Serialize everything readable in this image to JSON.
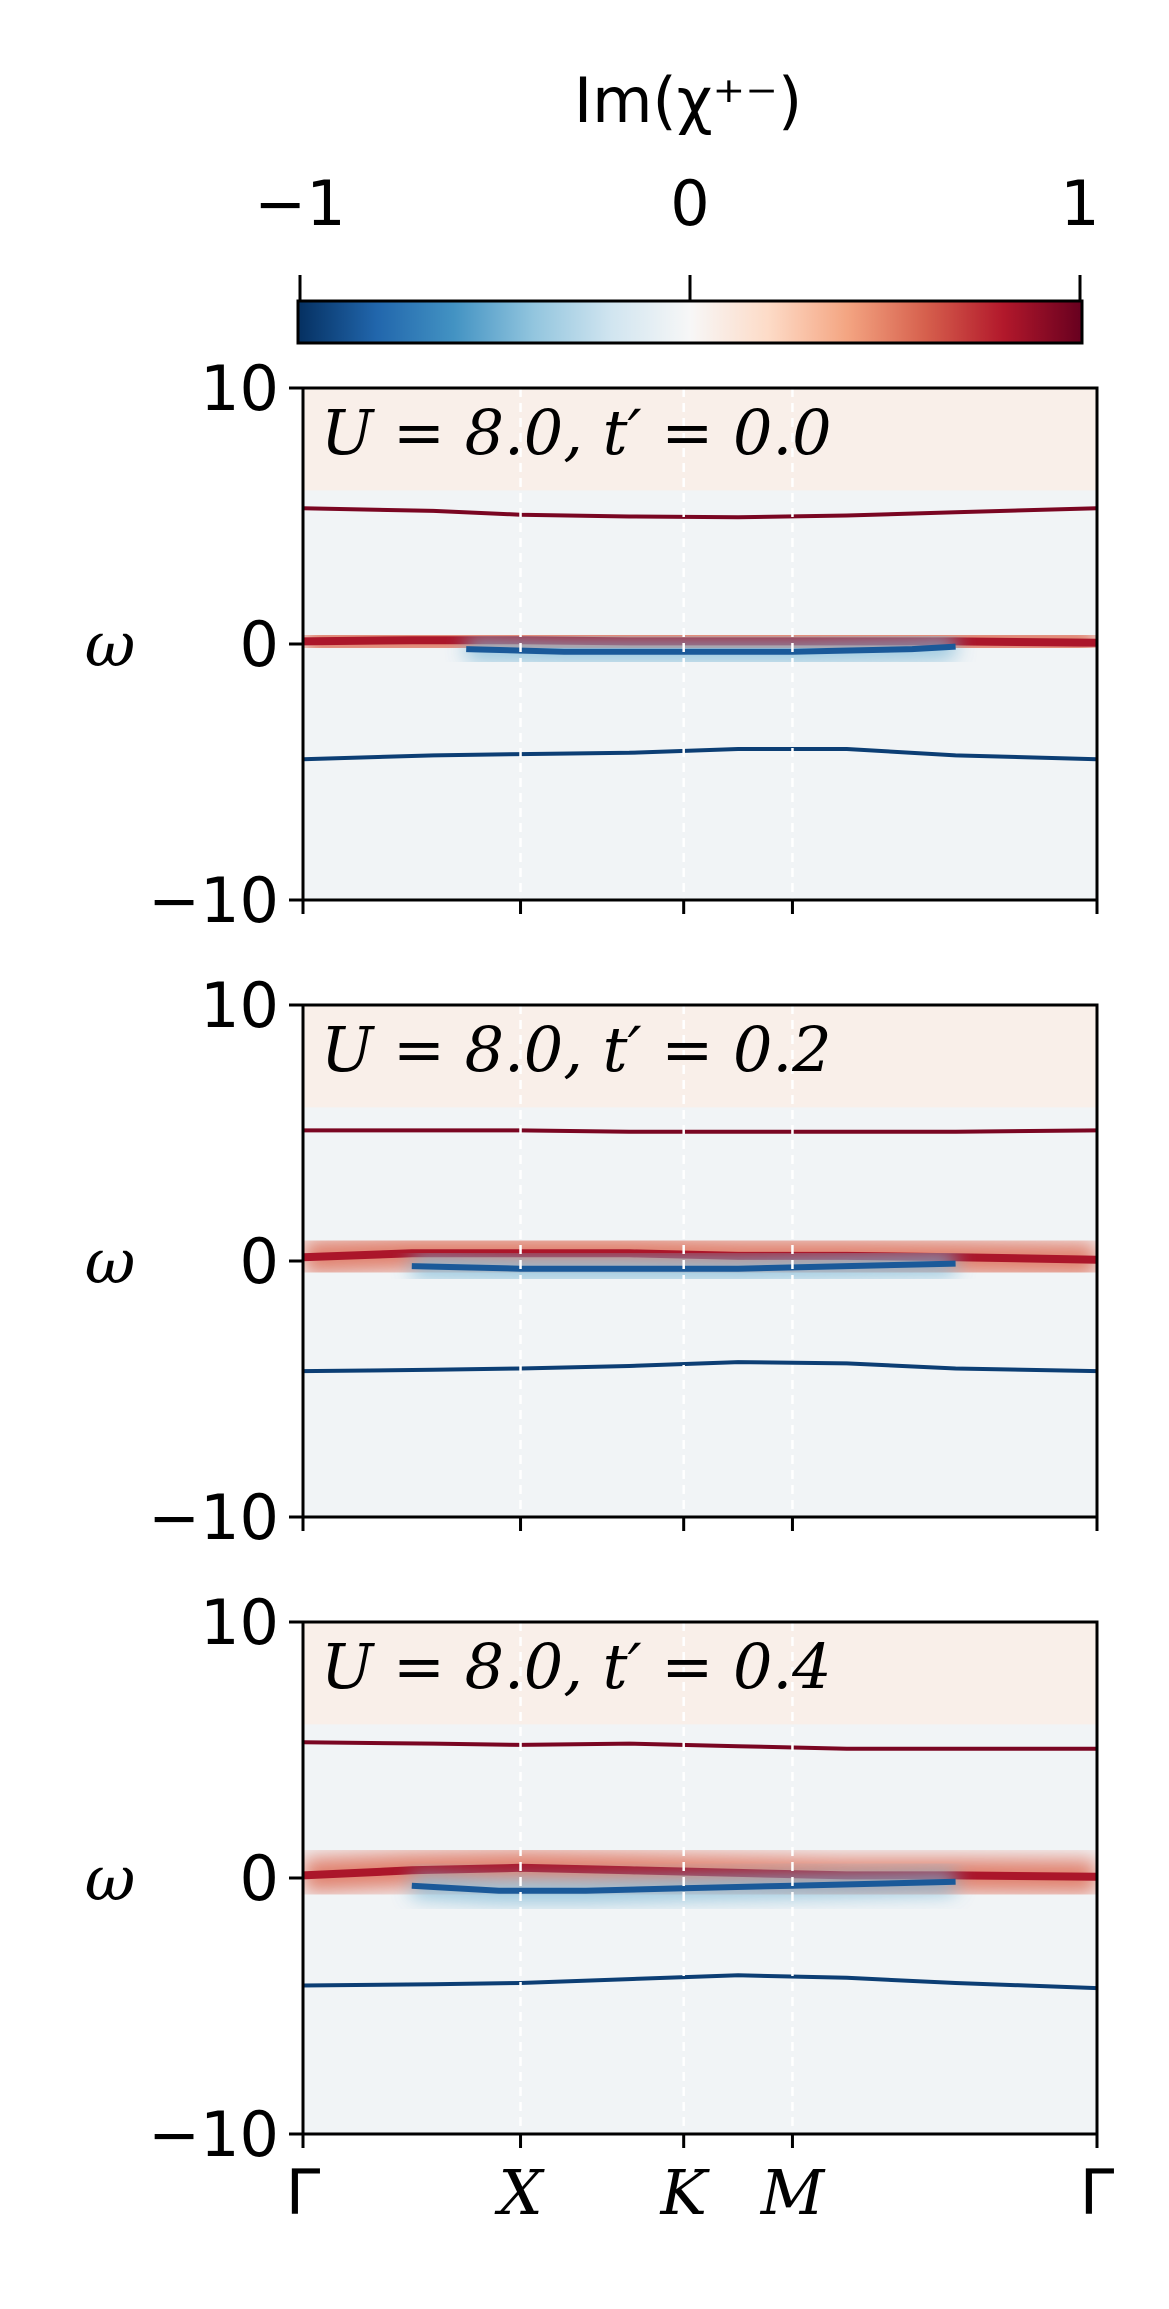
{
  "colorbar": {
    "label": "Im(χ⁺⁻)",
    "ticks": [
      "−1",
      "0",
      "1"
    ],
    "range": [
      -1,
      1
    ],
    "colormap": [
      "#053061",
      "#2166ac",
      "#4393c3",
      "#92c5de",
      "#d1e5f0",
      "#f7f7f7",
      "#fddbc7",
      "#f4a582",
      "#d6604d",
      "#b2182b",
      "#67001f"
    ]
  },
  "chart_data": [
    {
      "type": "heatmap",
      "title": "U = 8.0, t′ = 0.0",
      "ylabel": "ω",
      "xlabel": "",
      "xticks": [
        "Γ",
        "X",
        "K",
        "M",
        "Γ"
      ],
      "xtick_positions": [
        0,
        1,
        1.75,
        2.25,
        3.65
      ],
      "yticks": [
        -10,
        0,
        10
      ],
      "ylim": [
        -10,
        10
      ],
      "background_value": 0.03,
      "upper_band_tint": 0.06,
      "bands": [
        {
          "name": "upper",
          "sign": 1,
          "points": [
            [
              0,
              5.3
            ],
            [
              0.6,
              5.2
            ],
            [
              1.0,
              5.05
            ],
            [
              1.5,
              4.98
            ],
            [
              2.0,
              4.95
            ],
            [
              2.5,
              5.02
            ],
            [
              3.0,
              5.15
            ],
            [
              3.65,
              5.3
            ]
          ]
        },
        {
          "name": "central-positive",
          "sign": 1,
          "points": [
            [
              0,
              0.1
            ],
            [
              0.5,
              0.15
            ],
            [
              1.0,
              0.15
            ],
            [
              1.5,
              0.1
            ],
            [
              2.0,
              0.1
            ],
            [
              2.5,
              0.1
            ],
            [
              3.0,
              0.1
            ],
            [
              3.65,
              0.05
            ]
          ]
        },
        {
          "name": "central-negative",
          "sign": -1,
          "points": [
            [
              0.75,
              -0.2
            ],
            [
              1.2,
              -0.3
            ],
            [
              1.75,
              -0.3
            ],
            [
              2.25,
              -0.3
            ],
            [
              2.8,
              -0.2
            ],
            [
              3.0,
              -0.1
            ]
          ]
        },
        {
          "name": "lower",
          "sign": -1,
          "points": [
            [
              0,
              -4.5
            ],
            [
              0.6,
              -4.35
            ],
            [
              1.0,
              -4.3
            ],
            [
              1.5,
              -4.25
            ],
            [
              2.0,
              -4.1
            ],
            [
              2.5,
              -4.1
            ],
            [
              3.0,
              -4.35
            ],
            [
              3.65,
              -4.5
            ]
          ]
        }
      ]
    },
    {
      "type": "heatmap",
      "title": "U = 8.0, t′ = 0.2",
      "ylabel": "ω",
      "xlabel": "",
      "xticks": [
        "Γ",
        "X",
        "K",
        "M",
        "Γ"
      ],
      "xtick_positions": [
        0,
        1,
        1.75,
        2.25,
        3.65
      ],
      "yticks": [
        -10,
        0,
        10
      ],
      "ylim": [
        -10,
        10
      ],
      "background_value": 0.03,
      "upper_band_tint": 0.06,
      "bands": [
        {
          "name": "upper",
          "sign": 1,
          "points": [
            [
              0,
              5.1
            ],
            [
              0.6,
              5.1
            ],
            [
              1.0,
              5.1
            ],
            [
              1.5,
              5.05
            ],
            [
              2.0,
              5.05
            ],
            [
              2.5,
              5.05
            ],
            [
              3.0,
              5.05
            ],
            [
              3.65,
              5.1
            ]
          ]
        },
        {
          "name": "central-positive",
          "sign": 1,
          "points": [
            [
              0,
              0.15
            ],
            [
              0.5,
              0.3
            ],
            [
              1.0,
              0.3
            ],
            [
              1.5,
              0.3
            ],
            [
              2.0,
              0.2
            ],
            [
              2.5,
              0.2
            ],
            [
              3.0,
              0.15
            ],
            [
              3.65,
              0.05
            ]
          ]
        },
        {
          "name": "central-negative",
          "sign": -1,
          "points": [
            [
              0.5,
              -0.2
            ],
            [
              1.0,
              -0.3
            ],
            [
              1.5,
              -0.3
            ],
            [
              2.0,
              -0.3
            ],
            [
              2.5,
              -0.2
            ],
            [
              3.0,
              -0.1
            ]
          ]
        },
        {
          "name": "lower",
          "sign": -1,
          "points": [
            [
              0,
              -4.3
            ],
            [
              0.6,
              -4.25
            ],
            [
              1.0,
              -4.2
            ],
            [
              1.5,
              -4.1
            ],
            [
              2.0,
              -3.95
            ],
            [
              2.5,
              -4.0
            ],
            [
              3.0,
              -4.2
            ],
            [
              3.65,
              -4.3
            ]
          ]
        }
      ]
    },
    {
      "type": "heatmap",
      "title": "U = 8.0, t′ = 0.4",
      "ylabel": "ω",
      "xlabel": "",
      "xticks": [
        "Γ",
        "X",
        "K",
        "M",
        "Γ"
      ],
      "xtick_positions": [
        0,
        1,
        1.75,
        2.25,
        3.65
      ],
      "yticks": [
        -10,
        0,
        10
      ],
      "ylim": [
        -10,
        10
      ],
      "background_value": 0.03,
      "upper_band_tint": 0.06,
      "bands": [
        {
          "name": "upper",
          "sign": 1,
          "points": [
            [
              0,
              5.3
            ],
            [
              0.6,
              5.25
            ],
            [
              1.0,
              5.2
            ],
            [
              1.5,
              5.25
            ],
            [
              2.0,
              5.15
            ],
            [
              2.5,
              5.05
            ],
            [
              3.0,
              5.05
            ],
            [
              3.65,
              5.05
            ]
          ]
        },
        {
          "name": "central-positive",
          "sign": 1,
          "points": [
            [
              0,
              0.1
            ],
            [
              0.5,
              0.3
            ],
            [
              1.0,
              0.4
            ],
            [
              1.5,
              0.3
            ],
            [
              2.0,
              0.2
            ],
            [
              2.5,
              0.1
            ],
            [
              3.0,
              0.1
            ],
            [
              3.65,
              0.05
            ]
          ]
        },
        {
          "name": "central-negative",
          "sign": -1,
          "points": [
            [
              0.5,
              -0.3
            ],
            [
              0.9,
              -0.5
            ],
            [
              1.3,
              -0.5
            ],
            [
              1.75,
              -0.4
            ],
            [
              2.25,
              -0.3
            ],
            [
              3.0,
              -0.15
            ]
          ]
        },
        {
          "name": "lower",
          "sign": -1,
          "points": [
            [
              0,
              -4.2
            ],
            [
              0.6,
              -4.15
            ],
            [
              1.0,
              -4.1
            ],
            [
              1.5,
              -3.95
            ],
            [
              2.0,
              -3.8
            ],
            [
              2.5,
              -3.9
            ],
            [
              3.0,
              -4.1
            ],
            [
              3.65,
              -4.3
            ]
          ]
        }
      ]
    }
  ]
}
